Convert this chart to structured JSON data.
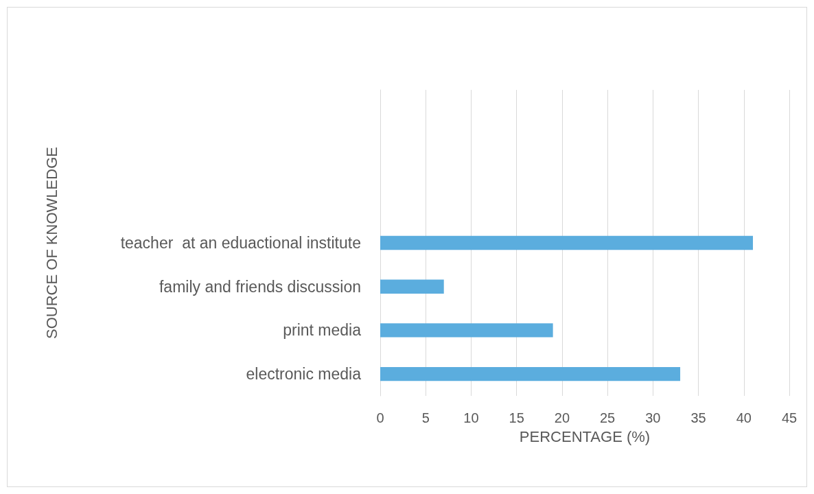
{
  "chart_data": {
    "type": "bar",
    "orientation": "horizontal",
    "xlabel": "PERCENTAGE (%)",
    "ylabel": "SOURCE OF KNOWLEDGE",
    "categories": [
      null,
      null,
      null,
      "teacher  at an eduactional institute",
      "family and friends discussion",
      "print media",
      "electronic media"
    ],
    "values": [
      null,
      null,
      null,
      41,
      7,
      19,
      33
    ],
    "color": "#5badde",
    "xlim": [
      0,
      45
    ],
    "xticks": [
      0,
      5,
      10,
      15,
      20,
      25,
      30,
      35,
      40,
      45
    ],
    "grid": "x"
  }
}
